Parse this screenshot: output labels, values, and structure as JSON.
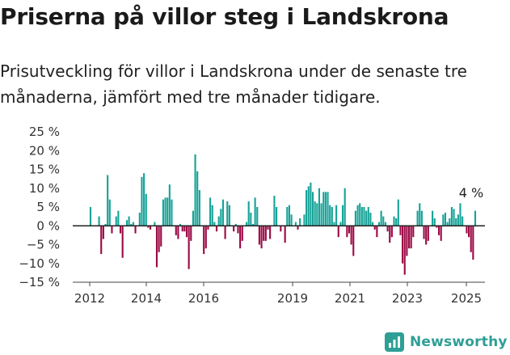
{
  "header": {
    "title": "Priserna på villor steg i Landskrona",
    "subtitle": "Prisutveckling för villor i Landskrona under de senaste tre månaderna, jämfört med tre månader tidigare."
  },
  "brand": {
    "name": "Newsworthy",
    "color": "#2e9f95"
  },
  "chart_data": {
    "type": "bar",
    "x_labels": [
      "2012",
      "2014",
      "2016",
      "2019",
      "2021",
      "2023",
      "2025"
    ],
    "y_ticks": [
      25,
      20,
      15,
      10,
      5,
      0,
      -5,
      -10,
      -15
    ],
    "y_tick_labels": [
      "25 %",
      "20 %",
      "15 %",
      "10 %",
      "5 %",
      "0 %",
      "−5 %",
      "−10 %",
      "−15 %"
    ],
    "ylim": [
      -15,
      25
    ],
    "colors": {
      "positive": "#17a398",
      "negative": "#9b0a45"
    },
    "annotation": "4 %",
    "grid": false,
    "values": [
      5,
      0,
      0,
      0,
      2.5,
      -7.5,
      -3.5,
      0.5,
      13.5,
      7,
      -2,
      0,
      2.5,
      4,
      -2,
      -8.5,
      0,
      1.5,
      2.5,
      0.5,
      1,
      -2,
      0,
      3.5,
      13,
      14,
      8.5,
      -0.5,
      -1,
      0,
      1,
      -11,
      -7,
      -5.5,
      7,
      7.5,
      7.5,
      11,
      7,
      0,
      -2.5,
      -3.5,
      0.5,
      -1.5,
      -1.5,
      -3,
      -11.5,
      -4,
      4,
      19,
      14.5,
      9.5,
      0,
      -7.5,
      -6,
      -1,
      7.5,
      5.5,
      1,
      -1.5,
      2.5,
      4.5,
      7,
      -3.5,
      6.5,
      5.5,
      0,
      -1.5,
      0.5,
      -2,
      -6,
      -4,
      0,
      1,
      6.5,
      3.5,
      0.5,
      7.5,
      5,
      -5,
      -6,
      -4,
      -4,
      -1,
      -3.5,
      0,
      8,
      5,
      0,
      -1.5,
      0,
      -4.5,
      5,
      5.5,
      3,
      0,
      1,
      -1,
      2,
      0,
      3,
      9.5,
      10.5,
      11.5,
      9,
      6.5,
      6,
      10,
      6,
      9,
      9,
      9,
      5.5,
      5,
      1,
      5.5,
      -3,
      1,
      5.5,
      10,
      -3,
      -2,
      -5,
      -8,
      4,
      5.5,
      6,
      5,
      5,
      4,
      5,
      3.5,
      1,
      -1,
      -3,
      1,
      4,
      2.5,
      1,
      -1.5,
      -4.5,
      -3,
      2.5,
      2,
      7,
      -2.5,
      -10,
      -13,
      -8,
      -6,
      -6,
      -3,
      0,
      4,
      6,
      4,
      -3.5,
      -5,
      -4,
      0,
      4,
      2,
      -0.5,
      -2.5,
      -4,
      3,
      3.5,
      1,
      2,
      5,
      4.5,
      2,
      3,
      6,
      2.5,
      0,
      -2,
      -3,
      -7,
      -9,
      4
    ]
  }
}
